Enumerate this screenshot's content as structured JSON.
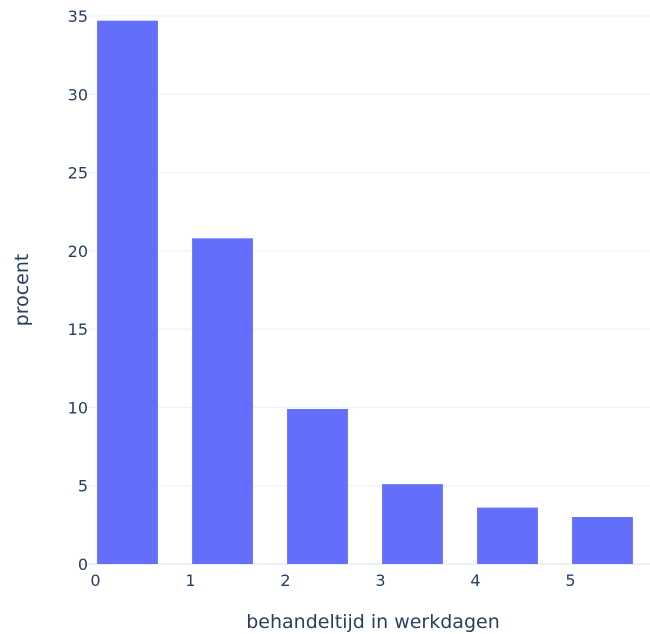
{
  "chart_data": {
    "type": "bar",
    "title": "",
    "xlabel": "behandeltijd in werkdagen",
    "ylabel": "procent",
    "categories": [
      "0",
      "1",
      "2",
      "3",
      "4",
      "5"
    ],
    "values": [
      34.7,
      20.8,
      9.9,
      5.1,
      3.6,
      3.0
    ],
    "ylim": [
      0,
      35
    ],
    "yticks": [
      "0",
      "5",
      "10",
      "15",
      "20",
      "25",
      "30",
      "35"
    ],
    "grid": true,
    "bar_color": "#636efa",
    "grid_color": "#ebf0f8",
    "text_color": "#2a3f5f"
  }
}
